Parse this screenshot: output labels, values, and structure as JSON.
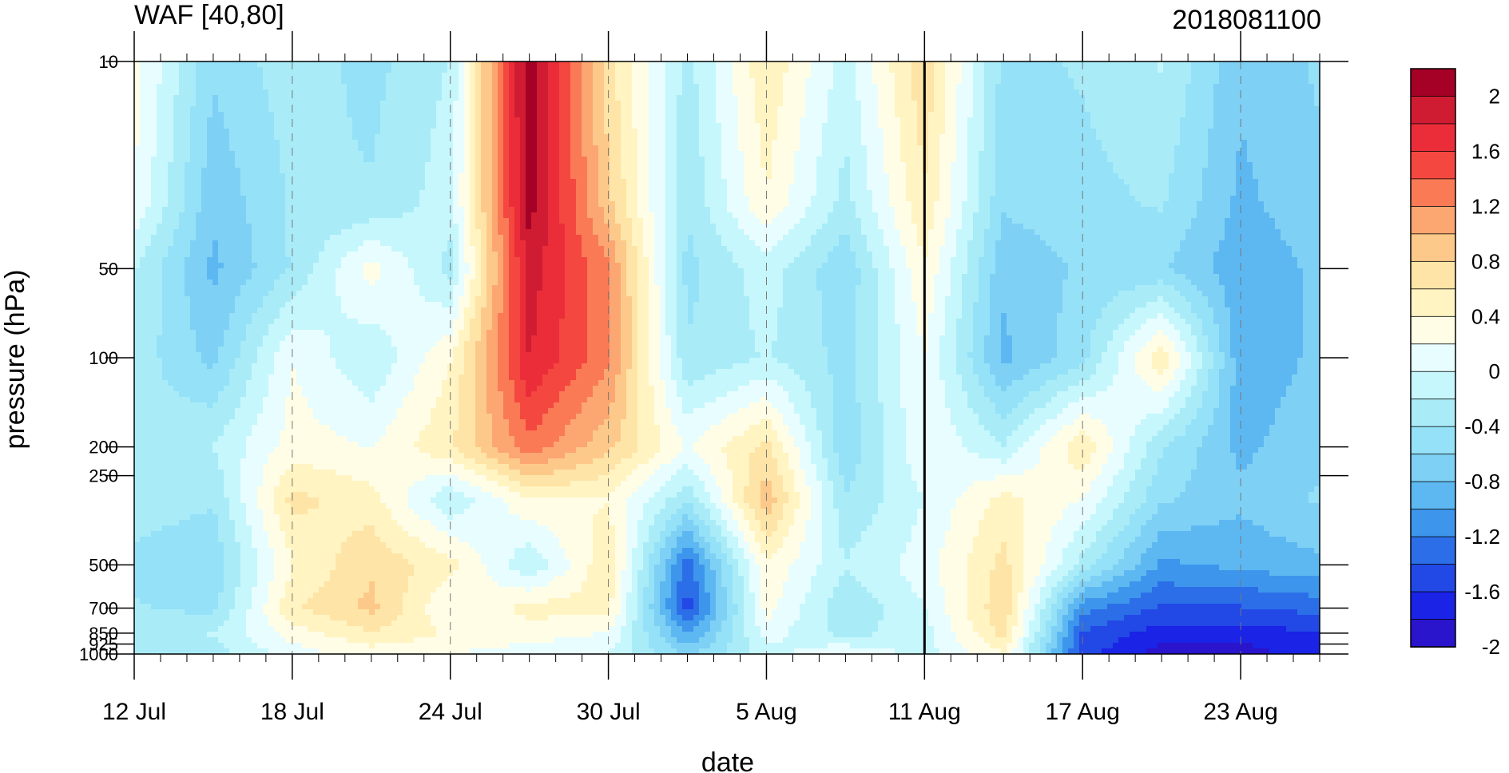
{
  "chart_data": {
    "type": "heatmap",
    "title": "WAF [40,80]",
    "subtitle_right": "2018081100",
    "xlabel": "date",
    "ylabel": "pressure (hPa)",
    "x_range": [
      "2018-07-12",
      "2018-08-26"
    ],
    "y_scale": "log (pressure, inverted)",
    "y_range_hPa": [
      1000,
      10
    ],
    "x_ticks": [
      {
        "date": "2018-07-12",
        "label": "12 Jul"
      },
      {
        "date": "2018-07-18",
        "label": "18 Jul"
      },
      {
        "date": "2018-07-24",
        "label": "24 Jul"
      },
      {
        "date": "2018-07-30",
        "label": "30 Jul"
      },
      {
        "date": "2018-08-05",
        "label": "5 Aug"
      },
      {
        "date": "2018-08-11",
        "label": "11 Aug"
      },
      {
        "date": "2018-08-17",
        "label": "17 Aug"
      },
      {
        "date": "2018-08-23",
        "label": "23 Aug"
      }
    ],
    "y_ticks": [
      {
        "p": 10,
        "label": "10"
      },
      {
        "p": 50,
        "label": "50"
      },
      {
        "p": 100,
        "label": "100"
      },
      {
        "p": 200,
        "label": "200"
      },
      {
        "p": 250,
        "label": "250"
      },
      {
        "p": 500,
        "label": "500"
      },
      {
        "p": 700,
        "label": "700"
      },
      {
        "p": 850,
        "label": "850"
      },
      {
        "p": 925,
        "label": "925"
      },
      {
        "p": 1000,
        "label": "1000"
      }
    ],
    "marked_date": "2018-08-11",
    "grid": "dashed vertical lines at date ticks",
    "legend": "colorbar right",
    "colorbar": {
      "labels": [
        "2",
        "1.6",
        "1.2",
        "0.8",
        "0.4",
        "0",
        "-0.4",
        "-0.8",
        "-1.2",
        "-1.6",
        "-2"
      ],
      "colors": [
        "#a50026",
        "#d01c33",
        "#eb2d3a",
        "#f4473f",
        "#fa7a56",
        "#fca672",
        "#fdc98a",
        "#fee4a6",
        "#fff4c2",
        "#fffde6",
        "#e8fdff",
        "#c6f7fc",
        "#a9ecf8",
        "#95e1f7",
        "#7fd0f5",
        "#5db8f2",
        "#3d96ec",
        "#2c6ee8",
        "#2248e6",
        "#1a23e6",
        "#2a14cc"
      ]
    },
    "time_series_grid": {
      "dates": [
        "2018-07-12",
        "2018-07-15",
        "2018-07-18",
        "2018-07-21",
        "2018-07-24",
        "2018-07-27",
        "2018-07-30",
        "2018-08-02",
        "2018-08-05",
        "2018-08-08",
        "2018-08-11",
        "2018-08-14",
        "2018-08-17",
        "2018-08-20",
        "2018-08-23",
        "2018-08-26"
      ],
      "levels_hPa": [
        10,
        30,
        50,
        100,
        200,
        300,
        500,
        700,
        850,
        1000
      ],
      "values": [
        [
          0.2,
          -0.7,
          -0.4,
          -0.6,
          -0.3,
          2.2,
          0.6,
          -0.4,
          0.5,
          -0.2,
          0.7,
          -0.6,
          -0.5,
          -0.3,
          -0.9,
          -0.7
        ],
        [
          0.1,
          -0.9,
          -0.5,
          -0.5,
          -0.2,
          2.1,
          0.8,
          -0.5,
          0.3,
          -0.4,
          0.5,
          -0.7,
          -0.6,
          -0.5,
          -1.0,
          -0.8
        ],
        [
          -0.3,
          -1.0,
          -0.5,
          0.2,
          -0.4,
          1.9,
          1.2,
          -0.6,
          -0.2,
          -0.7,
          0.3,
          -0.9,
          -0.7,
          -0.7,
          -1.1,
          -0.9
        ],
        [
          -0.4,
          -0.8,
          0.1,
          -0.3,
          0.3,
          1.8,
          1.2,
          -0.5,
          -0.3,
          -0.6,
          0.1,
          -1.0,
          -0.6,
          0.5,
          -1.1,
          -0.9
        ],
        [
          -0.5,
          -0.3,
          0.2,
          0.1,
          0.5,
          1.3,
          0.8,
          0.1,
          0.6,
          -0.7,
          0.1,
          -0.3,
          0.5,
          -0.5,
          -1.0,
          -0.8
        ],
        [
          -0.4,
          -0.5,
          0.6,
          0.4,
          -0.3,
          0.3,
          0.3,
          -0.5,
          0.9,
          -0.5,
          -0.1,
          0.4,
          0.1,
          -0.7,
          -0.9,
          -0.7
        ],
        [
          -0.6,
          -0.7,
          0.3,
          0.7,
          0.4,
          -0.3,
          0.5,
          -1.5,
          0.3,
          -0.3,
          0.0,
          0.6,
          -0.4,
          -1.2,
          -1.1,
          -1.0
        ],
        [
          -0.5,
          -0.6,
          0.5,
          0.8,
          0.1,
          0.4,
          0.4,
          -1.7,
          0.2,
          -0.5,
          -0.1,
          0.7,
          -1.3,
          -1.6,
          -1.6,
          -1.5
        ],
        [
          -0.4,
          -0.3,
          0.2,
          0.5,
          0.3,
          0.2,
          0.1,
          -1.2,
          0.0,
          -0.4,
          -0.2,
          0.6,
          -1.6,
          -1.9,
          -1.9,
          -1.8
        ],
        [
          -0.5,
          -0.4,
          0.0,
          0.2,
          0.1,
          0.0,
          -0.1,
          -0.8,
          -0.2,
          0.1,
          -0.2,
          0.3,
          -1.7,
          -2.1,
          -2.1,
          -1.9
        ]
      ]
    }
  }
}
